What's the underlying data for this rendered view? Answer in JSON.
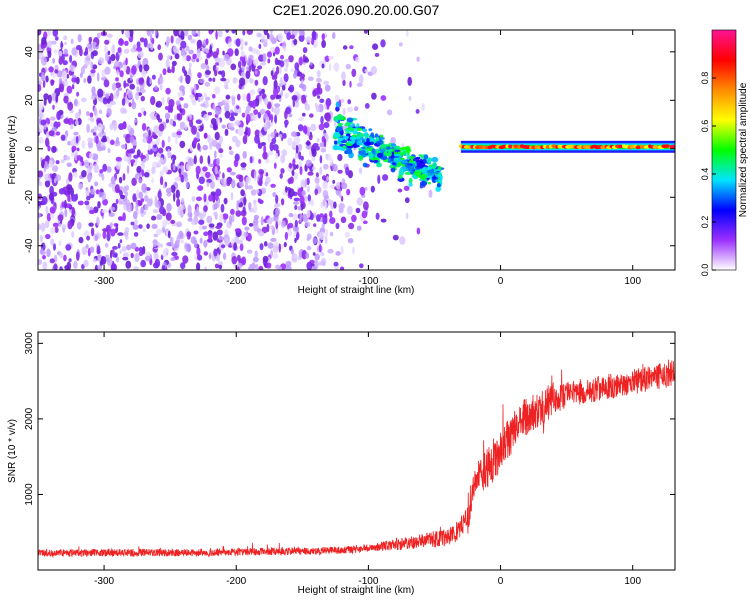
{
  "title": "C2E1.2026.090.20.00.G07",
  "chart_data": [
    {
      "type": "heatmap",
      "xlabel": "Height of straight line (km)",
      "ylabel": "Frequency (Hz)",
      "xlim": [
        -350,
        132
      ],
      "ylim": [
        -50,
        49
      ],
      "x_ticks": [
        -300,
        -200,
        -100,
        0,
        100
      ],
      "y_ticks": [
        -40,
        -20,
        0,
        20,
        40
      ],
      "colorbar": {
        "label": "Normalized spectral amplitude",
        "range": [
          0,
          1
        ],
        "ticks": [
          "0.0",
          "0.2",
          "0.4",
          "0.6",
          "0.8"
        ],
        "colors": [
          "#ffffff",
          "#9b30ff",
          "#0000ff",
          "#00e5ff",
          "#00ff00",
          "#ffff00",
          "#ff8c00",
          "#ff0000",
          "#ff1493"
        ]
      },
      "features": [
        {
          "name": "noise",
          "x": [
            -350,
            -100
          ],
          "y": [
            -50,
            49
          ],
          "amplitude": 0.12
        },
        {
          "name": "signal",
          "x": [
            -125,
            -45
          ],
          "y_start": 7,
          "y_end": -12,
          "amplitude": 0.35
        },
        {
          "name": "carrier",
          "x": [
            -30,
            132
          ],
          "y": 0.8,
          "amplitude": 0.75
        }
      ]
    },
    {
      "type": "line",
      "xlabel": "Height of straight line (km)",
      "ylabel": "SNR (10 * v/v)",
      "xlim": [
        -350,
        132
      ],
      "ylim": [
        0,
        3150
      ],
      "x_ticks": [
        -300,
        -200,
        -100,
        0,
        100
      ],
      "y_ticks": [
        1000,
        2000,
        3000
      ],
      "color": "#ee2222",
      "x": [
        -350,
        -300,
        -250,
        -200,
        -150,
        -120,
        -100,
        -80,
        -60,
        -45,
        -35,
        -28,
        -22,
        -18,
        -15,
        -12,
        -5,
        5,
        12,
        20,
        30,
        40,
        50,
        60,
        80,
        100,
        120,
        132
      ],
      "y": [
        220,
        230,
        230,
        240,
        250,
        260,
        290,
        330,
        380,
        420,
        480,
        620,
        900,
        1200,
        1300,
        1320,
        1420,
        1720,
        1880,
        2050,
        2120,
        2230,
        2320,
        2360,
        2420,
        2490,
        2560,
        2600
      ]
    }
  ]
}
